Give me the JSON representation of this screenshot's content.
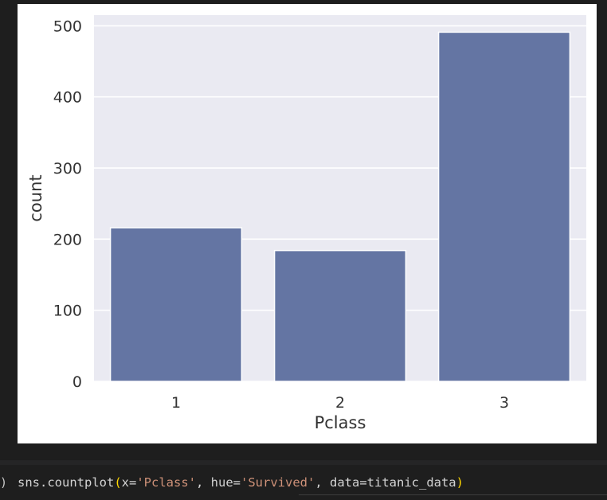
{
  "colors": {
    "plot_background": "#eaeaf2",
    "bar_color": "#6475a3",
    "grid_color": "#ffffff",
    "text_color": "#333333",
    "editor_background": "#1e1e1e",
    "code_string": "#ce9178",
    "code_paren": "#ffd700",
    "code_default": "#d4d4d4"
  },
  "chart_data": {
    "type": "bar",
    "categories": [
      "1",
      "2",
      "3"
    ],
    "values": [
      216,
      184,
      491
    ],
    "xlabel": "Pclass",
    "ylabel": "count",
    "ylim": [
      0,
      515
    ],
    "yticks": [
      "0",
      "100",
      "200",
      "300",
      "400",
      "500"
    ],
    "grid": true,
    "legend": "none"
  },
  "code_cell": {
    "gutter_icon": "run-indicator-icon",
    "gutter_glyph": ")",
    "tokens": {
      "fn": "sns.countplot",
      "open_paren": "(",
      "arg1_key": "x=",
      "arg1_val": "'Pclass'",
      "sep1": ", ",
      "arg2_key": "hue=",
      "arg2_val": "'Survived'",
      "sep2": ", ",
      "arg3": "data=titanic_data",
      "close_paren": ")"
    }
  }
}
